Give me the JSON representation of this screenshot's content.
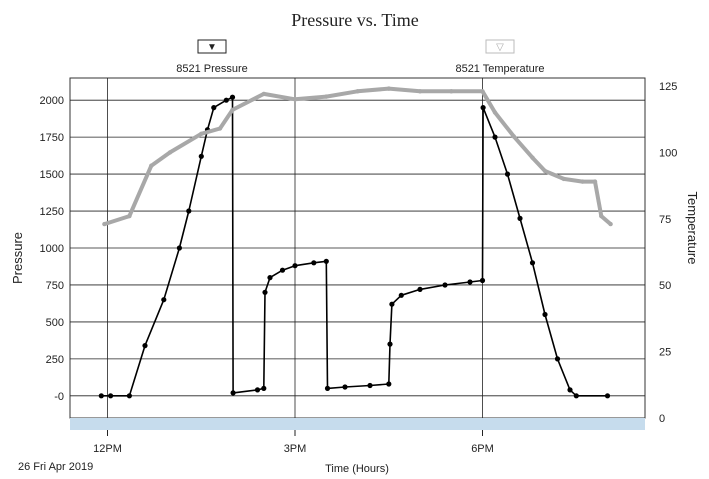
{
  "chart_data": {
    "type": "line",
    "title": "Pressure vs. Time",
    "xlabel": "Time (Hours)",
    "ylabel_left": "Pressure",
    "ylabel_right": "Temperature",
    "date_label": "26 Fri Apr 2019",
    "x_unit": "hours since 12PM",
    "x_ticks": [
      {
        "value": 0,
        "label": "12PM"
      },
      {
        "value": 3,
        "label": "3PM"
      },
      {
        "value": 6,
        "label": "6PM"
      }
    ],
    "xlim": [
      -0.6,
      8.6
    ],
    "ylim_left": [
      -150,
      2150
    ],
    "yticks_left": [
      {
        "value": 2000,
        "label": "2000"
      },
      {
        "value": 1750,
        "label": "1750"
      },
      {
        "value": 1500,
        "label": "1500"
      },
      {
        "value": 1250,
        "label": "1250"
      },
      {
        "value": 1000,
        "label": "1000"
      },
      {
        "value": 750,
        "label": "750"
      },
      {
        "value": 500,
        "label": "500"
      },
      {
        "value": 250,
        "label": "250"
      },
      {
        "value": 0,
        "label": "-0"
      }
    ],
    "ylim_right": [
      0,
      128
    ],
    "yticks_right": [
      {
        "value": 125,
        "label": "125"
      },
      {
        "value": 100,
        "label": "100"
      },
      {
        "value": 75,
        "label": "75"
      },
      {
        "value": 50,
        "label": "50"
      },
      {
        "value": 25,
        "label": "25"
      },
      {
        "value": 0,
        "label": "0"
      }
    ],
    "legend": [
      {
        "name": "8521 Pressure",
        "marker": "▼",
        "color": "#000000"
      },
      {
        "name": "8521 Temperature",
        "marker": "▽",
        "color": "#aaaaaa"
      }
    ],
    "series": [
      {
        "name": "8521 Pressure",
        "axis": "left",
        "color": "#000000",
        "points": [
          [
            -0.1,
            0
          ],
          [
            0.05,
            0
          ],
          [
            0.35,
            0
          ],
          [
            0.6,
            340
          ],
          [
            0.9,
            650
          ],
          [
            1.15,
            1000
          ],
          [
            1.3,
            1250
          ],
          [
            1.5,
            1620
          ],
          [
            1.6,
            1800
          ],
          [
            1.7,
            1950
          ],
          [
            1.9,
            2000
          ],
          [
            2.0,
            2020
          ],
          [
            2.01,
            20
          ],
          [
            2.4,
            40
          ],
          [
            2.5,
            50
          ],
          [
            2.52,
            700
          ],
          [
            2.6,
            800
          ],
          [
            2.8,
            850
          ],
          [
            3.0,
            880
          ],
          [
            3.3,
            900
          ],
          [
            3.5,
            910
          ],
          [
            3.52,
            50
          ],
          [
            3.8,
            60
          ],
          [
            4.2,
            70
          ],
          [
            4.5,
            80
          ],
          [
            4.52,
            350
          ],
          [
            4.55,
            620
          ],
          [
            4.7,
            680
          ],
          [
            5.0,
            720
          ],
          [
            5.4,
            750
          ],
          [
            5.8,
            770
          ],
          [
            6.0,
            780
          ],
          [
            6.01,
            1950
          ],
          [
            6.2,
            1750
          ],
          [
            6.4,
            1500
          ],
          [
            6.6,
            1200
          ],
          [
            6.8,
            900
          ],
          [
            7.0,
            550
          ],
          [
            7.2,
            250
          ],
          [
            7.4,
            40
          ],
          [
            7.5,
            0
          ],
          [
            8.0,
            0
          ]
        ]
      },
      {
        "name": "8521 Temperature",
        "axis": "right",
        "color": "#a8a8a8",
        "points": [
          [
            -0.05,
            73
          ],
          [
            0.35,
            76
          ],
          [
            0.7,
            95
          ],
          [
            1.0,
            100
          ],
          [
            1.5,
            107
          ],
          [
            1.8,
            109
          ],
          [
            2.0,
            116
          ],
          [
            2.5,
            122
          ],
          [
            3.0,
            120
          ],
          [
            3.5,
            121
          ],
          [
            4.0,
            123
          ],
          [
            4.5,
            124
          ],
          [
            5.0,
            123
          ],
          [
            5.5,
            123
          ],
          [
            6.0,
            123
          ],
          [
            6.2,
            115
          ],
          [
            6.5,
            106
          ],
          [
            6.8,
            98
          ],
          [
            7.0,
            93
          ],
          [
            7.3,
            90
          ],
          [
            7.6,
            89
          ],
          [
            7.8,
            89
          ],
          [
            7.9,
            76
          ],
          [
            8.05,
            73
          ]
        ]
      }
    ],
    "grid": true
  }
}
